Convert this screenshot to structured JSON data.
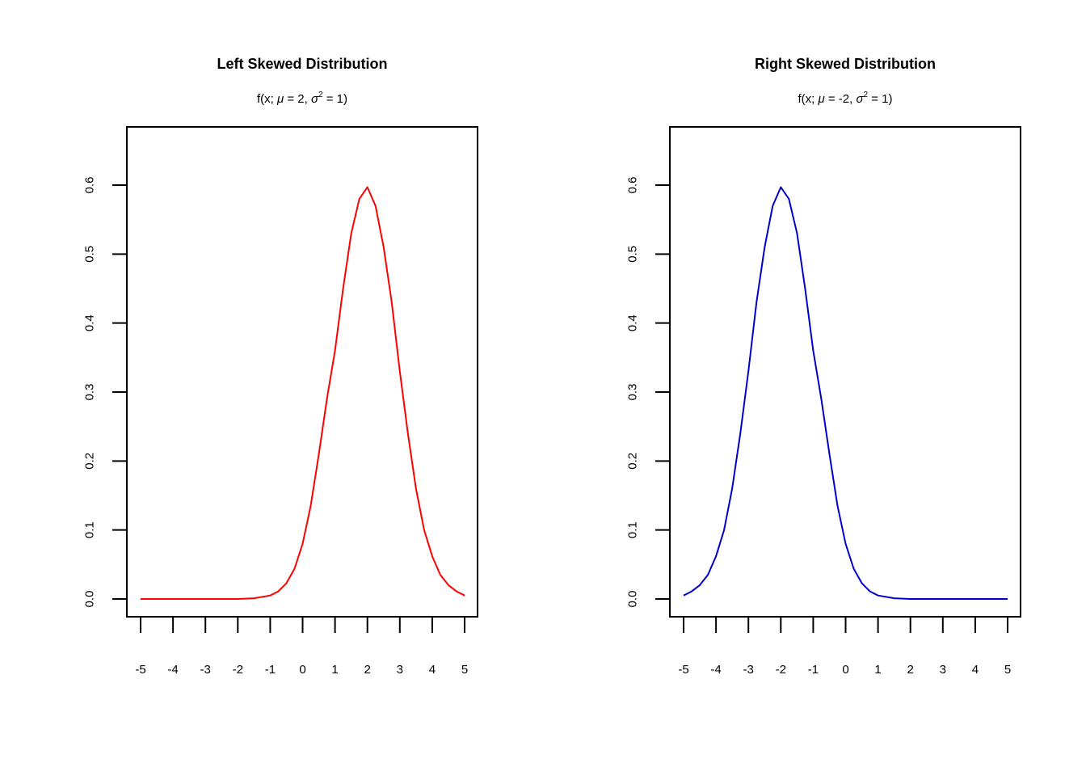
{
  "chart_data": [
    {
      "type": "line",
      "title": "Left Skewed Distribution",
      "subtitle": {
        "prefix": "f(x; ",
        "mu_symbol": "μ",
        "mu_text": " = 2, ",
        "sigma_symbol": "σ",
        "sigma_exp": "2",
        "suffix": " = 1)"
      },
      "xlabel": "",
      "ylabel": "",
      "xlim": [
        -5,
        5
      ],
      "ylim": [
        0,
        0.6
      ],
      "x_ticks": [
        "-5",
        "-4",
        "-3",
        "-2",
        "-1",
        "0",
        "1",
        "2",
        "3",
        "4",
        "5"
      ],
      "y_ticks": [
        "0.0",
        "0.1",
        "0.2",
        "0.3",
        "0.4",
        "0.5",
        "0.6"
      ],
      "grid": false,
      "series": [
        {
          "color": "#ff0000",
          "x": [
            -5,
            -4,
            -3,
            -2,
            -1.5,
            -1,
            -0.75,
            -0.5,
            -0.25,
            0,
            0.25,
            0.5,
            0.75,
            1,
            1.25,
            1.5,
            1.75,
            2,
            2.25,
            2.5,
            2.75,
            3,
            3.25,
            3.5,
            3.75,
            4,
            4.25,
            4.5,
            4.75,
            5
          ],
          "y": [
            0.0,
            0.0,
            0.0,
            0.0,
            0.001,
            0.005,
            0.011,
            0.023,
            0.044,
            0.08,
            0.135,
            0.21,
            0.29,
            0.36,
            0.45,
            0.53,
            0.58,
            0.597,
            0.57,
            0.51,
            0.43,
            0.33,
            0.24,
            0.16,
            0.1,
            0.062,
            0.035,
            0.02,
            0.011,
            0.005
          ]
        }
      ]
    },
    {
      "type": "line",
      "title": "Right Skewed Distribution",
      "subtitle": {
        "prefix": "f(x; ",
        "mu_symbol": "μ",
        "mu_text": " = -2, ",
        "sigma_symbol": "σ",
        "sigma_exp": "2",
        "suffix": " = 1)"
      },
      "xlabel": "",
      "ylabel": "",
      "xlim": [
        -5,
        5
      ],
      "ylim": [
        0,
        0.6
      ],
      "x_ticks": [
        "-5",
        "-4",
        "-3",
        "-2",
        "-1",
        "0",
        "1",
        "2",
        "3",
        "4",
        "5"
      ],
      "y_ticks": [
        "0.0",
        "0.1",
        "0.2",
        "0.3",
        "0.4",
        "0.5",
        "0.6"
      ],
      "grid": false,
      "series": [
        {
          "color": "#0000cd",
          "x": [
            -5,
            -4.75,
            -4.5,
            -4.25,
            -4,
            -3.75,
            -3.5,
            -3.25,
            -3,
            -2.75,
            -2.5,
            -2.25,
            -2,
            -1.75,
            -1.5,
            -1.25,
            -1,
            -0.75,
            -0.5,
            -0.25,
            0,
            0.25,
            0.5,
            0.75,
            1,
            1.5,
            2,
            3,
            4,
            5
          ],
          "y": [
            0.005,
            0.011,
            0.02,
            0.035,
            0.062,
            0.1,
            0.16,
            0.24,
            0.33,
            0.43,
            0.51,
            0.57,
            0.597,
            0.58,
            0.53,
            0.45,
            0.36,
            0.29,
            0.21,
            0.135,
            0.08,
            0.044,
            0.023,
            0.011,
            0.005,
            0.001,
            0.0,
            0.0,
            0.0,
            0.0
          ]
        }
      ]
    }
  ]
}
